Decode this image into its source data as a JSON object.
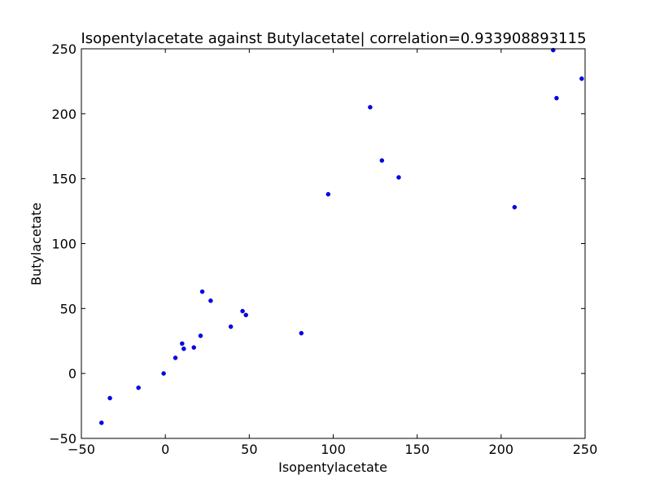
{
  "chart_data": {
    "type": "scatter",
    "title": "Isopentylacetate against Butylacetate| correlation=0.933908893115",
    "xlabel": "Isopentylacetate",
    "ylabel": "Butylacetate",
    "xlim": [
      -50,
      250
    ],
    "ylim": [
      -50,
      250
    ],
    "xticks": [
      -50,
      0,
      50,
      100,
      150,
      200,
      250
    ],
    "yticks": [
      -50,
      0,
      50,
      100,
      150,
      200,
      250
    ],
    "grid": false,
    "marker_color": "#0000ff",
    "points": [
      {
        "x": -38,
        "y": -38
      },
      {
        "x": -33,
        "y": -19
      },
      {
        "x": -16,
        "y": -11
      },
      {
        "x": -1,
        "y": 0
      },
      {
        "x": 6,
        "y": 12
      },
      {
        "x": 10,
        "y": 23
      },
      {
        "x": 11,
        "y": 19
      },
      {
        "x": 17,
        "y": 20
      },
      {
        "x": 21,
        "y": 29
      },
      {
        "x": 22,
        "y": 63
      },
      {
        "x": 27,
        "y": 56
      },
      {
        "x": 39,
        "y": 36
      },
      {
        "x": 46,
        "y": 48
      },
      {
        "x": 48,
        "y": 45
      },
      {
        "x": 81,
        "y": 31
      },
      {
        "x": 97,
        "y": 138
      },
      {
        "x": 122,
        "y": 205
      },
      {
        "x": 129,
        "y": 164
      },
      {
        "x": 139,
        "y": 151
      },
      {
        "x": 208,
        "y": 128
      },
      {
        "x": 231,
        "y": 249
      },
      {
        "x": 233,
        "y": 212
      },
      {
        "x": 248,
        "y": 227
      }
    ]
  }
}
